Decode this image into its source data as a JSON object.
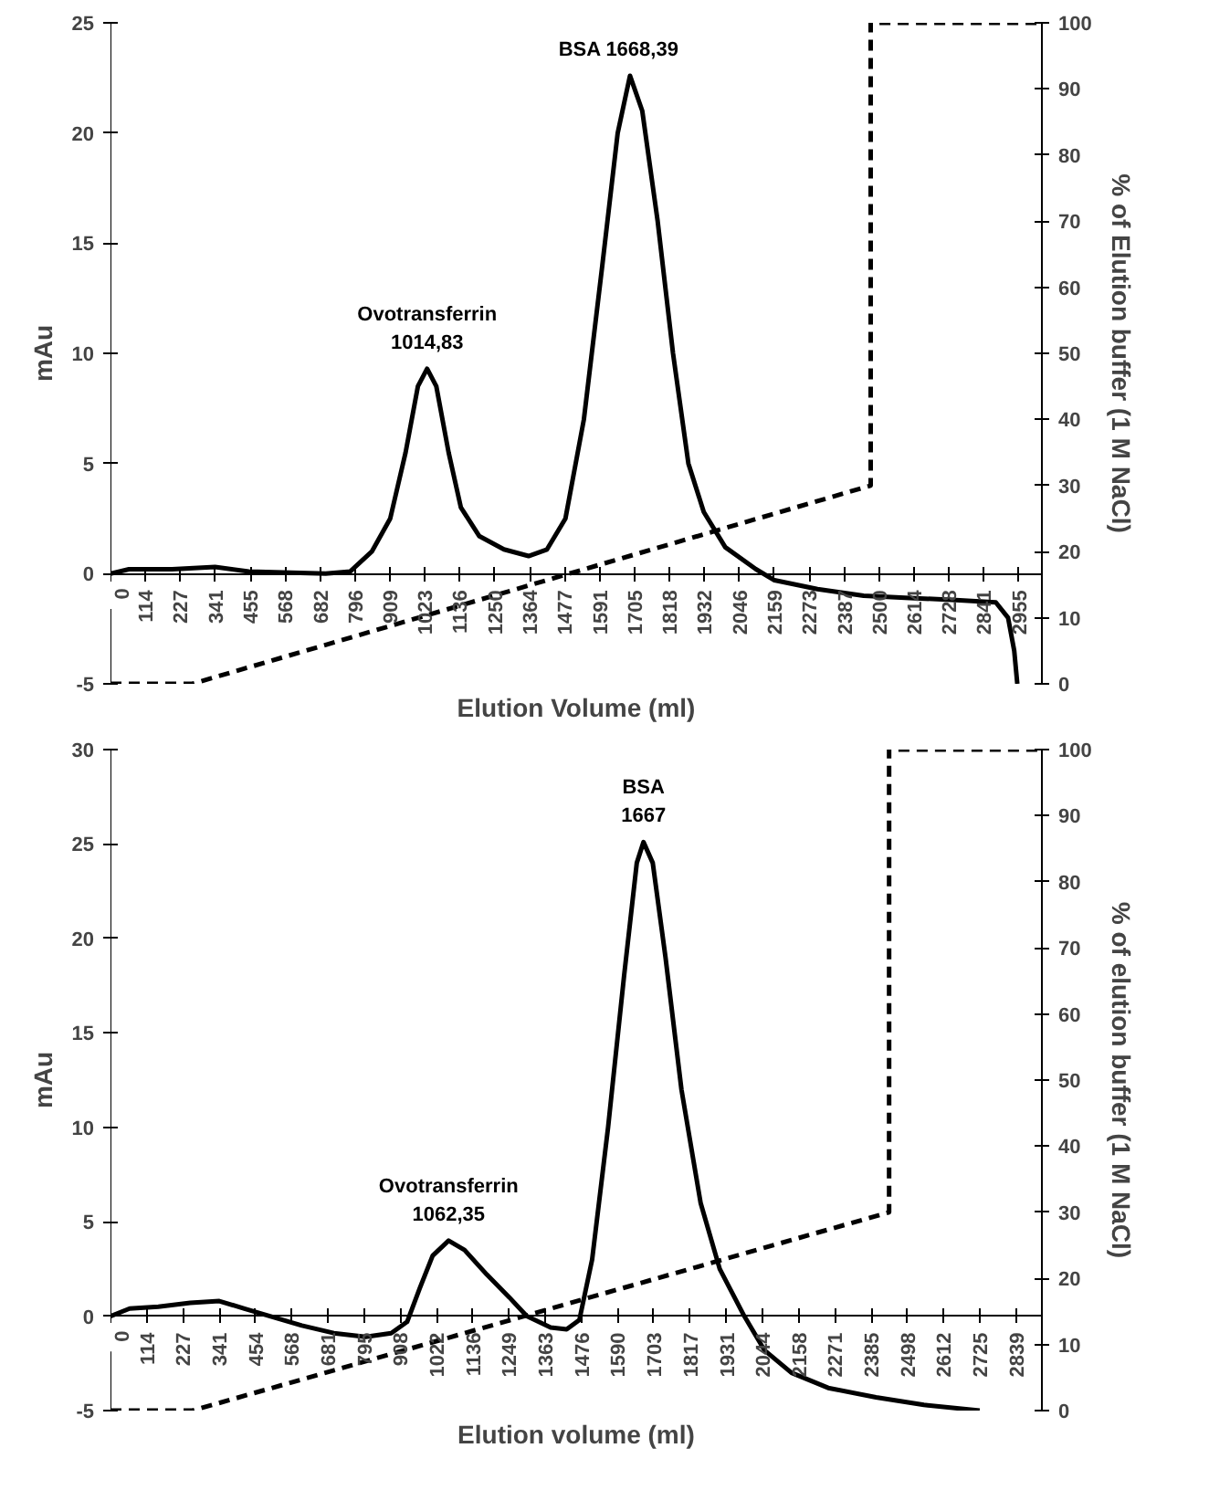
{
  "chart_data": [
    {
      "type": "line",
      "xlabel": "Elution Volume (ml)",
      "ylabel": "mAu",
      "y2label": "% of Elution buffer (1 M NaCl)",
      "grid": false,
      "marker": "none",
      "xlim": [
        0,
        3030
      ],
      "xticks": [
        0,
        114,
        227,
        341,
        455,
        568,
        682,
        796,
        909,
        1023,
        1136,
        1250,
        1364,
        1477,
        1591,
        1705,
        1818,
        1932,
        2046,
        2159,
        2273,
        2387,
        2500,
        2614,
        2728,
        2841,
        2955
      ],
      "ylim": [
        -5,
        25
      ],
      "yticks": [
        -5,
        0,
        5,
        10,
        15,
        20,
        25
      ],
      "y2lim": [
        0,
        100
      ],
      "y2ticks": [
        0,
        10,
        20,
        30,
        40,
        50,
        60,
        70,
        80,
        90,
        100
      ],
      "annotations": [
        {
          "text": "Ovotransferrin\n1014,83",
          "x": 1030,
          "y": 9.3
        },
        {
          "text": "BSA     1668,39",
          "x": 1690,
          "y": 22.6
        }
      ],
      "series": [
        {
          "color": "#000000",
          "line_style": "solid",
          "x": [
            0,
            60,
            200,
            340,
            450,
            700,
            780,
            850,
            910,
            960,
            1000,
            1030,
            1060,
            1100,
            1140,
            1200,
            1280,
            1360,
            1420,
            1480,
            1540,
            1600,
            1650,
            1690,
            1730,
            1780,
            1830,
            1880,
            1930,
            2000,
            2100,
            2160,
            2300,
            2450,
            2600,
            2750,
            2880,
            2920,
            2940,
            2950
          ],
          "values": [
            0,
            0.2,
            0.2,
            0.3,
            0.1,
            0,
            0.1,
            1.0,
            2.5,
            5.5,
            8.5,
            9.3,
            8.5,
            5.5,
            3.0,
            1.7,
            1.1,
            0.8,
            1.1,
            2.5,
            7,
            14,
            20,
            22.6,
            21,
            16,
            10,
            5,
            2.8,
            1.2,
            0.2,
            -0.3,
            -0.7,
            -1.0,
            -1.1,
            -1.2,
            -1.3,
            -2,
            -3.5,
            -5
          ]
        },
        {
          "color": "#000000",
          "line_style": "dashed",
          "axis": "y2",
          "x": [
            0,
            266,
            2473,
            2473,
            3030
          ],
          "values": [
            0,
            0,
            30,
            100,
            100
          ]
        }
      ]
    },
    {
      "type": "line",
      "xlabel": "Elution volume (ml)",
      "ylabel": "mAu",
      "y2label": "% of elution buffer (1 M NaCl)",
      "grid": false,
      "marker": "none",
      "xlim": [
        0,
        2920
      ],
      "xticks": [
        0,
        114,
        227,
        341,
        454,
        568,
        681,
        795,
        908,
        1022,
        1136,
        1249,
        1363,
        1476,
        1590,
        1703,
        1817,
        1931,
        2044,
        2158,
        2271,
        2385,
        2498,
        2612,
        2725,
        2839
      ],
      "ylim": [
        -5,
        30
      ],
      "yticks": [
        -5,
        0,
        5,
        10,
        15,
        20,
        25,
        30
      ],
      "y2lim": [
        0,
        100
      ],
      "y2ticks": [
        0,
        10,
        20,
        30,
        40,
        50,
        60,
        70,
        80,
        90,
        100
      ],
      "annotations": [
        {
          "text": "Ovotransferrin\n1062,35",
          "x": 1060,
          "y": 4.0
        },
        {
          "text": "BSA\n1667",
          "x": 1671,
          "y": 25.1
        }
      ],
      "series": [
        {
          "color": "#000000",
          "line_style": "solid",
          "x": [
            0,
            60,
            150,
            250,
            341,
            420,
            500,
            600,
            700,
            800,
            880,
            930,
            970,
            1010,
            1060,
            1110,
            1180,
            1250,
            1305,
            1380,
            1430,
            1470,
            1510,
            1560,
            1610,
            1650,
            1671,
            1700,
            1740,
            1790,
            1850,
            1910,
            1987,
            2050,
            2135,
            2250,
            2400,
            2550,
            2725
          ],
          "values": [
            0,
            0.4,
            0.5,
            0.7,
            0.8,
            0.4,
            0,
            -0.5,
            -0.9,
            -1.1,
            -0.9,
            -0.3,
            1.5,
            3.2,
            4.0,
            3.5,
            2.2,
            1.0,
            0,
            -0.6,
            -0.7,
            -0.2,
            3,
            10,
            18,
            24,
            25.1,
            24,
            19,
            12,
            6,
            2.5,
            0,
            -1.8,
            -3,
            -3.8,
            -4.3,
            -4.7,
            -5
          ]
        },
        {
          "color": "#000000",
          "line_style": "dashed",
          "axis": "y2",
          "x": [
            0,
            257,
            2441,
            2441,
            2920
          ],
          "values": [
            0,
            0,
            30,
            100,
            100
          ]
        }
      ]
    }
  ]
}
